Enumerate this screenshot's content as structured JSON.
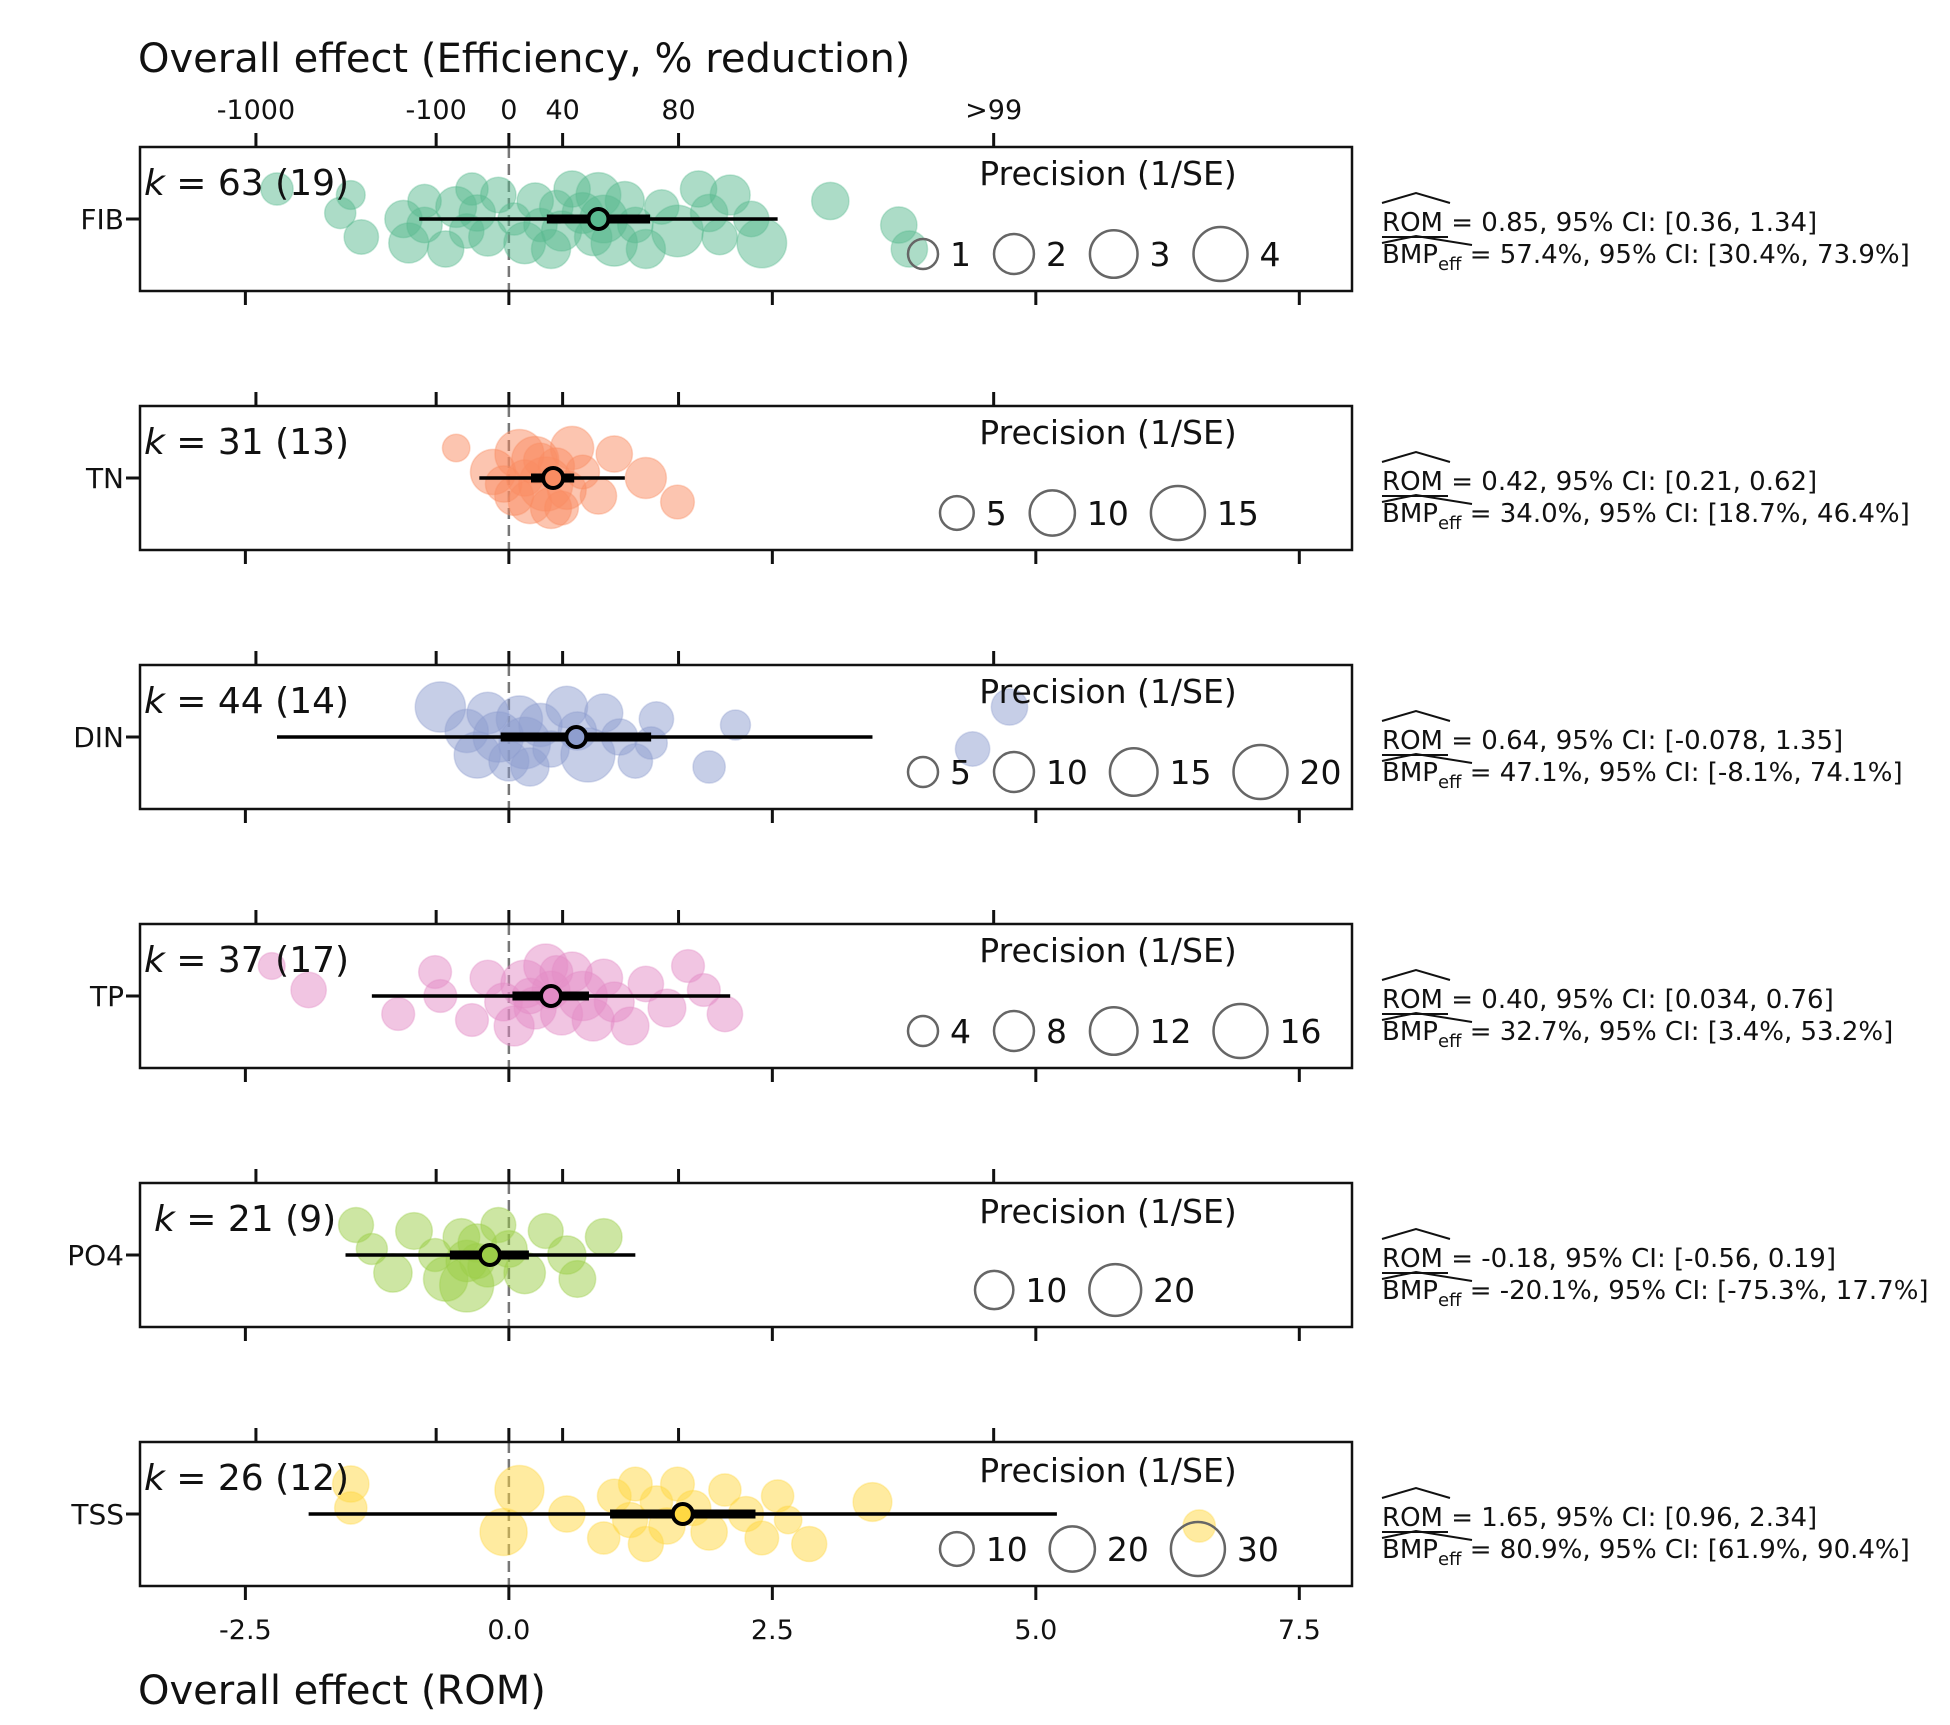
{
  "chart_data": {
    "type": "forest-bubble",
    "title": "Overall effect (Efficiency, % reduction)",
    "xlabel": "Overall effect (ROM)",
    "xlim": [
      -3.5,
      8.0
    ],
    "bottom_ticks": [
      {
        "value": -2.5,
        "label": "-2.5"
      },
      {
        "value": 0.0,
        "label": "0.0"
      },
      {
        "value": 2.5,
        "label": "2.5"
      },
      {
        "value": 5.0,
        "label": "5.0"
      },
      {
        "value": 7.5,
        "label": "7.5"
      }
    ],
    "top_ticks": [
      {
        "value": -2.4,
        "label": "-1000"
      },
      {
        "value": -0.69,
        "label": "-100"
      },
      {
        "value": 0.0,
        "label": "0"
      },
      {
        "value": 0.51,
        "label": "40"
      },
      {
        "value": 1.61,
        "label": "80"
      },
      {
        "value": 4.6,
        "label": ">99"
      }
    ],
    "precision_title": "Precision (1/SE)",
    "panels": [
      {
        "label": "FIB",
        "k_text": "= 63 (19)",
        "color": "#5ab990",
        "estimate": 0.85,
        "pi": [
          -0.85,
          2.55
        ],
        "ci": [
          0.36,
          1.34
        ],
        "rom_text": "= 0.85, 95% CI: [0.36, 1.34]",
        "bmp_text": "= 57.4%, 95% CI: [30.4%, 73.9%]",
        "legend": [
          {
            "value": 1,
            "label": "1"
          },
          {
            "value": 2,
            "label": "2"
          },
          {
            "value": 3,
            "label": "3"
          },
          {
            "value": 4,
            "label": "4"
          }
        ],
        "points": [
          {
            "x": -2.2,
            "p": 1.2
          },
          {
            "x": -1.6,
            "p": 1.1
          },
          {
            "x": -1.4,
            "p": 1.4
          },
          {
            "x": -1.5,
            "p": 0.9
          },
          {
            "x": -1.0,
            "p": 1.7
          },
          {
            "x": -0.95,
            "p": 2.0
          },
          {
            "x": -0.8,
            "p": 1.3
          },
          {
            "x": -0.8,
            "p": 1.5
          },
          {
            "x": -0.6,
            "p": 1.6
          },
          {
            "x": -0.5,
            "p": 2.1
          },
          {
            "x": -0.4,
            "p": 1.4
          },
          {
            "x": -0.35,
            "p": 1.2
          },
          {
            "x": -0.3,
            "p": 1.6
          },
          {
            "x": -0.2,
            "p": 1.8
          },
          {
            "x": -0.1,
            "p": 1.5
          },
          {
            "x": 0.05,
            "p": 1.2
          },
          {
            "x": 0.15,
            "p": 2.2
          },
          {
            "x": 0.25,
            "p": 1.6
          },
          {
            "x": 0.3,
            "p": 1.3
          },
          {
            "x": 0.4,
            "p": 1.9
          },
          {
            "x": 0.45,
            "p": 1.3
          },
          {
            "x": 0.5,
            "p": 2.0
          },
          {
            "x": 0.6,
            "p": 1.6
          },
          {
            "x": 0.7,
            "p": 2.1
          },
          {
            "x": 0.8,
            "p": 1.7
          },
          {
            "x": 0.85,
            "p": 2.6
          },
          {
            "x": 0.9,
            "p": 3.0
          },
          {
            "x": 1.0,
            "p": 2.8
          },
          {
            "x": 1.1,
            "p": 1.9
          },
          {
            "x": 1.2,
            "p": 1.5
          },
          {
            "x": 1.3,
            "p": 1.9
          },
          {
            "x": 1.45,
            "p": 1.4
          },
          {
            "x": 1.6,
            "p": 3.6
          },
          {
            "x": 1.8,
            "p": 1.6
          },
          {
            "x": 1.9,
            "p": 1.7
          },
          {
            "x": 2.0,
            "p": 1.5
          },
          {
            "x": 2.1,
            "p": 2.0
          },
          {
            "x": 2.3,
            "p": 1.5
          },
          {
            "x": 2.4,
            "p": 3.3
          },
          {
            "x": 3.05,
            "p": 1.7
          },
          {
            "x": 3.7,
            "p": 1.6
          },
          {
            "x": 3.8,
            "p": 1.6
          }
        ]
      },
      {
        "label": "TN",
        "k_text": "= 31 (13)",
        "color": "#f98c62",
        "estimate": 0.42,
        "pi": [
          -0.28,
          1.1
        ],
        "ci": [
          0.21,
          0.62
        ],
        "rom_text": "= 0.42, 95% CI: [0.21, 0.62]",
        "bmp_text": "= 34.0%, 95% CI: [18.7%, 46.4%]",
        "legend": [
          {
            "value": 5,
            "label": "5"
          },
          {
            "value": 10,
            "label": "10"
          },
          {
            "value": 15,
            "label": "15"
          }
        ],
        "points": [
          {
            "x": -0.5,
            "p": 3
          },
          {
            "x": -0.15,
            "p": 10
          },
          {
            "x": 0.05,
            "p": 7
          },
          {
            "x": 0.1,
            "p": 12
          },
          {
            "x": 0.15,
            "p": 6
          },
          {
            "x": 0.2,
            "p": 9
          },
          {
            "x": 0.3,
            "p": 5
          },
          {
            "x": 0.35,
            "p": 15
          },
          {
            "x": 0.4,
            "p": 8
          },
          {
            "x": 0.45,
            "p": 6
          },
          {
            "x": 0.55,
            "p": 7
          },
          {
            "x": 0.6,
            "p": 9
          },
          {
            "x": 0.7,
            "p": 5
          },
          {
            "x": 0.85,
            "p": 6
          },
          {
            "x": 1.0,
            "p": 6
          },
          {
            "x": 1.3,
            "p": 8
          },
          {
            "x": 1.6,
            "p": 5
          },
          {
            "x": 0.25,
            "p": 11
          },
          {
            "x": -0.05,
            "p": 6
          },
          {
            "x": 0.5,
            "p": 5
          }
        ]
      },
      {
        "label": "DIN",
        "k_text": "= 44 (14)",
        "color": "#8e9ecf",
        "estimate": 0.64,
        "pi": [
          -2.2,
          3.45
        ],
        "ci": [
          -0.078,
          1.35
        ],
        "rom_text": "= 0.64, 95% CI: [-0.078, 1.35]",
        "bmp_text": "= 47.1%, 95% CI: [-8.1%, 74.1%]",
        "legend": [
          {
            "value": 5,
            "label": "5"
          },
          {
            "value": 10,
            "label": "10"
          },
          {
            "value": 15,
            "label": "15"
          },
          {
            "value": 20,
            "label": "20"
          }
        ],
        "points": [
          {
            "x": -0.65,
            "p": 17
          },
          {
            "x": -0.4,
            "p": 12
          },
          {
            "x": -0.3,
            "p": 14
          },
          {
            "x": -0.2,
            "p": 11
          },
          {
            "x": -0.1,
            "p": 17
          },
          {
            "x": 0.0,
            "p": 10
          },
          {
            "x": 0.1,
            "p": 14
          },
          {
            "x": 0.15,
            "p": 18
          },
          {
            "x": 0.2,
            "p": 9
          },
          {
            "x": 0.3,
            "p": 12
          },
          {
            "x": 0.4,
            "p": 8
          },
          {
            "x": 0.55,
            "p": 11
          },
          {
            "x": 0.65,
            "p": 9
          },
          {
            "x": 0.75,
            "p": 20
          },
          {
            "x": 0.9,
            "p": 9
          },
          {
            "x": 1.05,
            "p": 8
          },
          {
            "x": 1.2,
            "p": 7
          },
          {
            "x": 1.4,
            "p": 7
          },
          {
            "x": 1.35,
            "p": 6
          },
          {
            "x": 1.9,
            "p": 6
          },
          {
            "x": 2.15,
            "p": 5
          },
          {
            "x": 4.4,
            "p": 7
          },
          {
            "x": 4.75,
            "p": 8
          }
        ]
      },
      {
        "label": "TP",
        "k_text": "= 37 (17)",
        "color": "#e38bc6",
        "estimate": 0.4,
        "pi": [
          -1.3,
          2.1
        ],
        "ci": [
          0.034,
          0.76
        ],
        "rom_text": "= 0.40, 95% CI: [0.034, 0.76]",
        "bmp_text": "= 32.7%, 95% CI: [3.4%, 53.2%]",
        "legend": [
          {
            "value": 4,
            "label": "4"
          },
          {
            "value": 8,
            "label": "8"
          },
          {
            "value": 12,
            "label": "12"
          },
          {
            "value": 16,
            "label": "16"
          }
        ],
        "points": [
          {
            "x": -2.25,
            "p": 3
          },
          {
            "x": -1.9,
            "p": 6
          },
          {
            "x": -1.05,
            "p": 5
          },
          {
            "x": -0.7,
            "p": 5
          },
          {
            "x": -0.65,
            "p": 5
          },
          {
            "x": -0.35,
            "p": 5
          },
          {
            "x": -0.2,
            "p": 6
          },
          {
            "x": -0.05,
            "p": 7
          },
          {
            "x": 0.05,
            "p": 8
          },
          {
            "x": 0.15,
            "p": 12
          },
          {
            "x": 0.25,
            "p": 9
          },
          {
            "x": 0.35,
            "p": 10
          },
          {
            "x": 0.4,
            "p": 7
          },
          {
            "x": 0.5,
            "p": 9
          },
          {
            "x": 0.6,
            "p": 8
          },
          {
            "x": 0.7,
            "p": 13
          },
          {
            "x": 0.8,
            "p": 9
          },
          {
            "x": 0.9,
            "p": 7
          },
          {
            "x": 1.0,
            "p": 8
          },
          {
            "x": 1.15,
            "p": 7
          },
          {
            "x": 1.3,
            "p": 6
          },
          {
            "x": 1.5,
            "p": 7
          },
          {
            "x": 1.7,
            "p": 5
          },
          {
            "x": 1.85,
            "p": 5
          },
          {
            "x": 2.05,
            "p": 6
          },
          {
            "x": 0.45,
            "p": 5
          },
          {
            "x": 0.2,
            "p": 6
          }
        ]
      },
      {
        "label": "PO4",
        "k_text": "= 21 (9)",
        "color": "#9ccd48",
        "estimate": -0.18,
        "pi": [
          -1.55,
          1.2
        ],
        "ci": [
          -0.56,
          0.19
        ],
        "rom_text": "= -0.18, 95% CI: [-0.56, 0.19]",
        "bmp_text": "= -20.1%, 95% CI: [-75.3%, 17.7%]",
        "legend": [
          {
            "value": 10,
            "label": "10"
          },
          {
            "value": 20,
            "label": "20"
          }
        ],
        "points": [
          {
            "x": -1.45,
            "p": 8
          },
          {
            "x": -1.3,
            "p": 6
          },
          {
            "x": -1.1,
            "p": 10
          },
          {
            "x": -0.9,
            "p": 9
          },
          {
            "x": -0.7,
            "p": 7
          },
          {
            "x": -0.6,
            "p": 14
          },
          {
            "x": -0.45,
            "p": 9
          },
          {
            "x": -0.4,
            "p": 12
          },
          {
            "x": -0.4,
            "p": 22
          },
          {
            "x": -0.3,
            "p": 10
          },
          {
            "x": -0.2,
            "p": 11
          },
          {
            "x": -0.1,
            "p": 8
          },
          {
            "x": 0.0,
            "p": 9
          },
          {
            "x": 0.15,
            "p": 12
          },
          {
            "x": 0.35,
            "p": 8
          },
          {
            "x": 0.55,
            "p": 10
          },
          {
            "x": 0.65,
            "p": 9
          },
          {
            "x": 0.9,
            "p": 9
          },
          {
            "x": -0.3,
            "p": 8
          }
        ]
      },
      {
        "label": "TSS",
        "k_text": "= 26 (12)",
        "color": "#ffd842",
        "estimate": 1.65,
        "pi": [
          -1.9,
          5.2
        ],
        "ci": [
          0.96,
          2.34
        ],
        "rom_text": "= 1.65, 95% CI: [0.96, 2.34]",
        "bmp_text": "= 80.9%, 95% CI: [61.9%, 90.4%]",
        "legend": [
          {
            "value": 10,
            "label": "10"
          },
          {
            "value": 20,
            "label": "20"
          },
          {
            "value": 30,
            "label": "30"
          }
        ],
        "points": [
          {
            "x": -1.5,
            "p": 12
          },
          {
            "x": -1.5,
            "p": 9
          },
          {
            "x": -0.05,
            "p": 22
          },
          {
            "x": 0.1,
            "p": 24
          },
          {
            "x": 0.55,
            "p": 12
          },
          {
            "x": 0.9,
            "p": 9
          },
          {
            "x": 1.0,
            "p": 10
          },
          {
            "x": 1.15,
            "p": 11
          },
          {
            "x": 1.3,
            "p": 11
          },
          {
            "x": 1.4,
            "p": 9
          },
          {
            "x": 1.5,
            "p": 12
          },
          {
            "x": 1.6,
            "p": 10
          },
          {
            "x": 1.75,
            "p": 11
          },
          {
            "x": 1.9,
            "p": 12
          },
          {
            "x": 2.05,
            "p": 9
          },
          {
            "x": 2.25,
            "p": 11
          },
          {
            "x": 2.4,
            "p": 10
          },
          {
            "x": 2.55,
            "p": 9
          },
          {
            "x": 2.65,
            "p": 6
          },
          {
            "x": 2.85,
            "p": 11
          },
          {
            "x": 3.45,
            "p": 14
          },
          {
            "x": 6.55,
            "p": 9
          },
          {
            "x": 1.2,
            "p": 10
          }
        ]
      }
    ]
  },
  "stat_labels": {
    "rom": "ROM",
    "bmp": "BMP",
    "bmp_sub": "eff",
    "k": "k"
  }
}
